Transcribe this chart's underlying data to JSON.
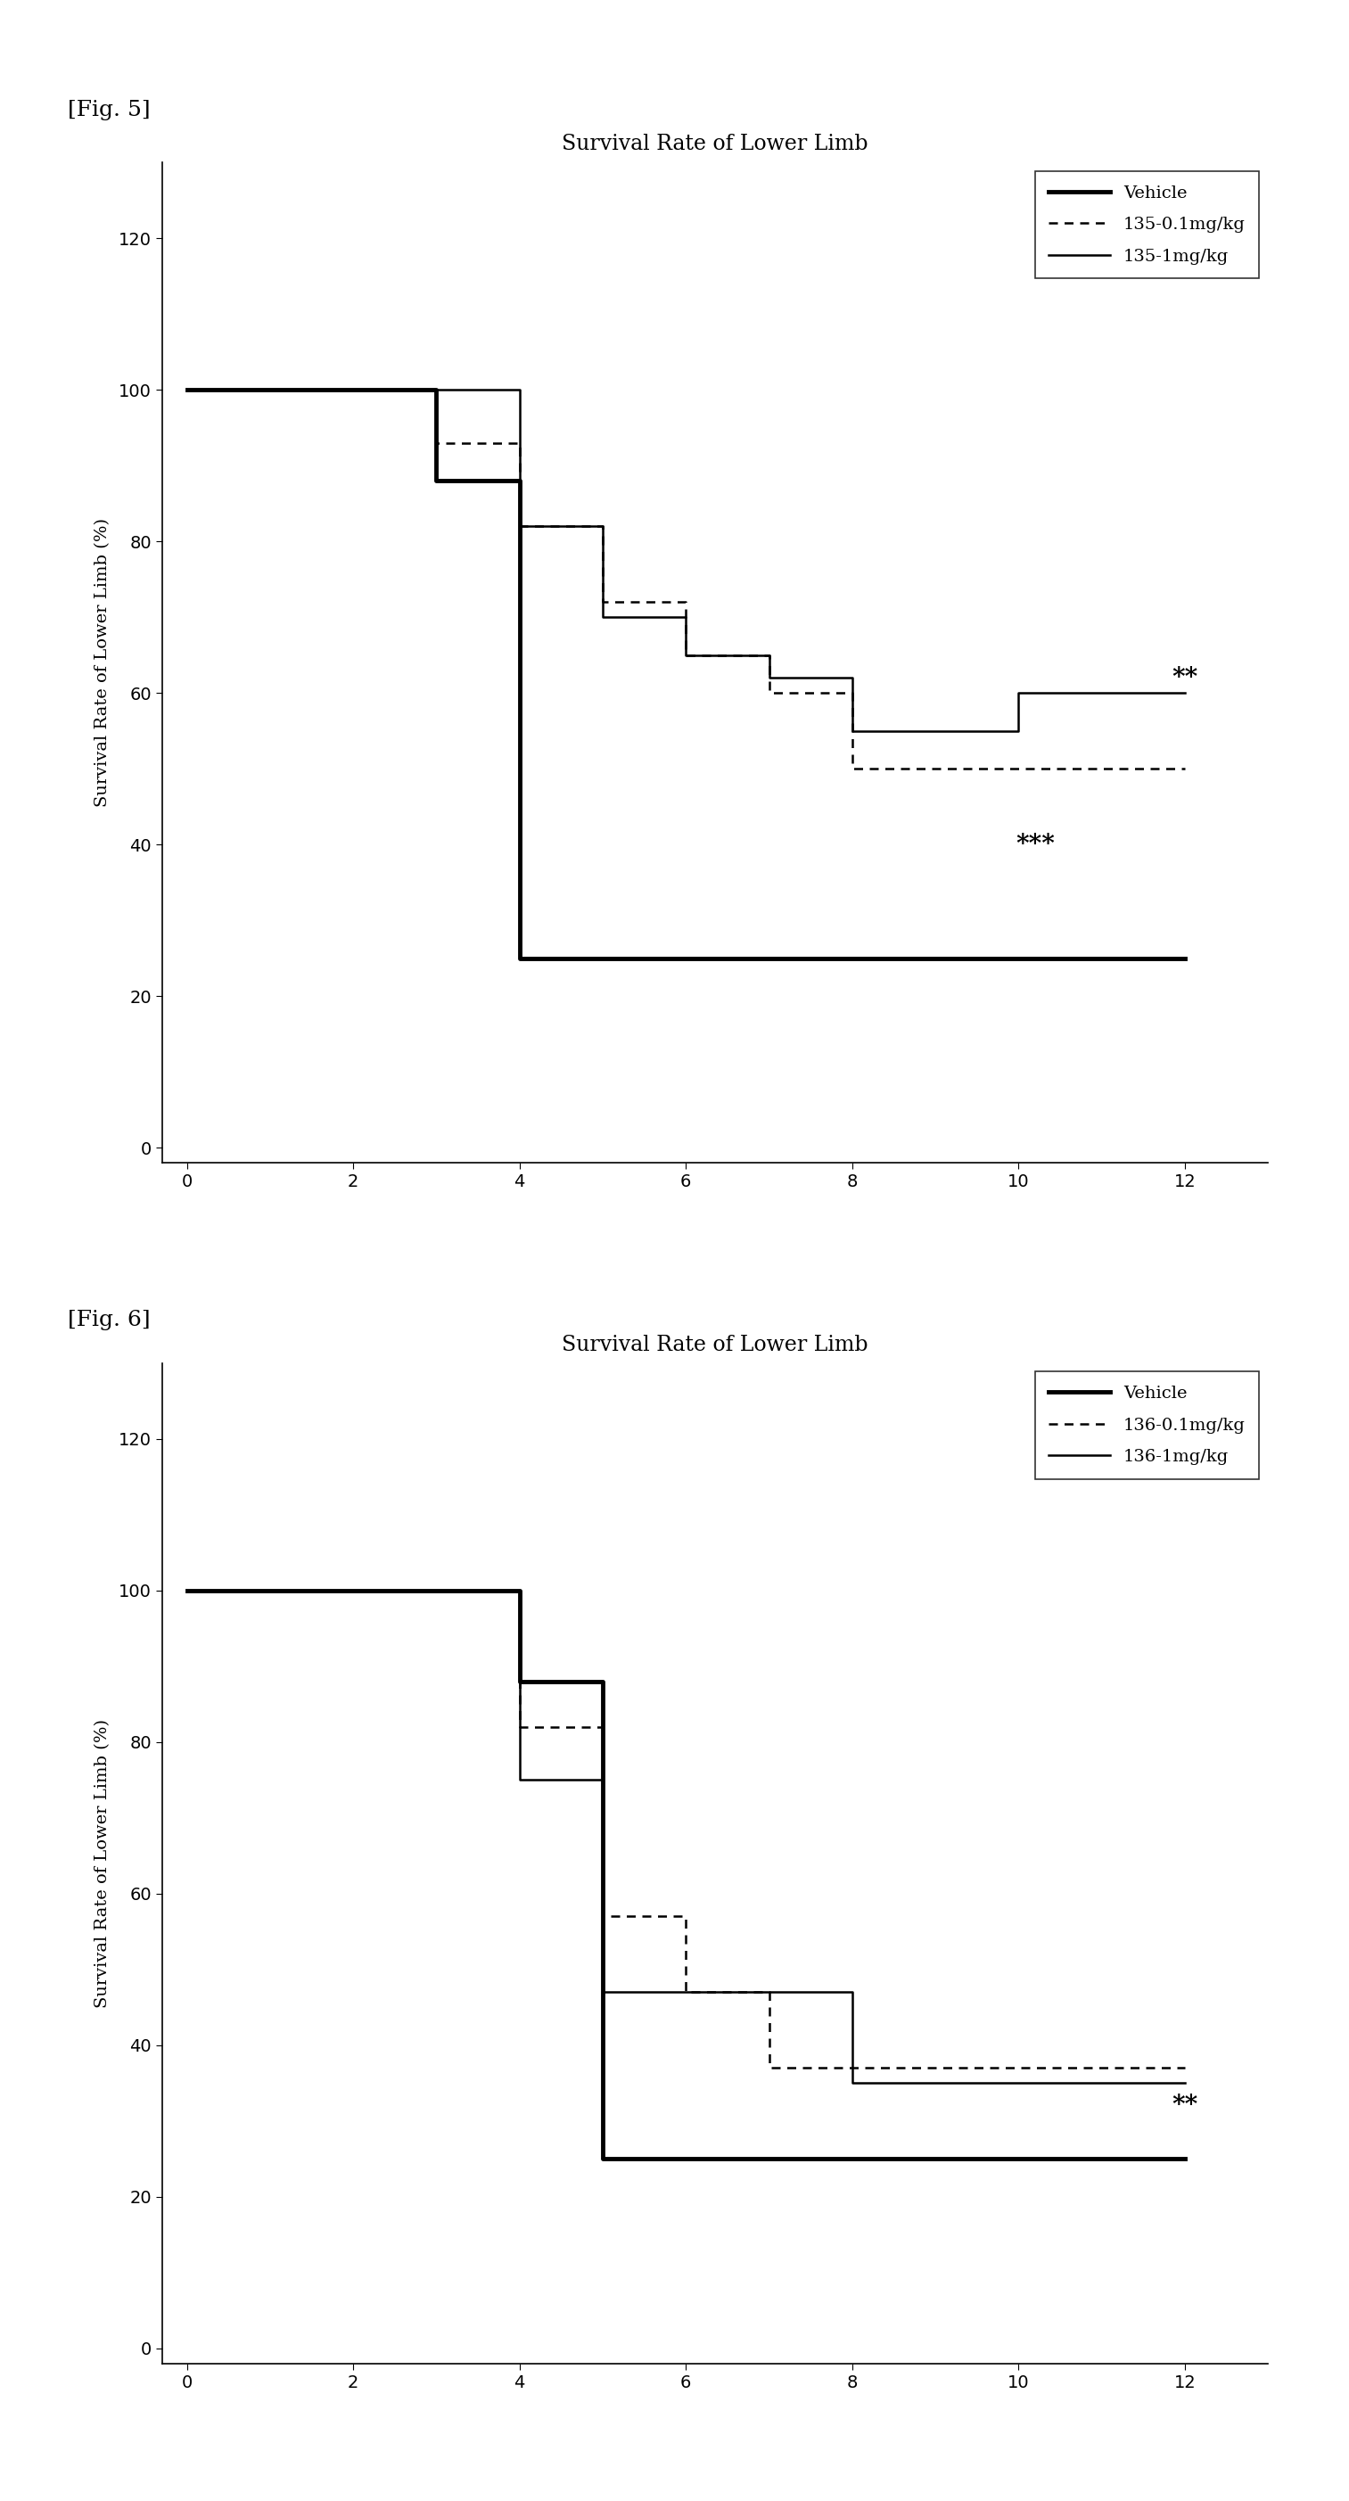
{
  "fig5": {
    "title": "Survival Rate of Lower Limb",
    "ylabel": "Survival Rate of Lower Limb (%)",
    "xlim": [
      -0.3,
      13
    ],
    "ylim": [
      -2,
      130
    ],
    "yticks": [
      0,
      20,
      40,
      60,
      80,
      100,
      120
    ],
    "xticks": [
      0,
      2,
      4,
      6,
      8,
      10,
      12
    ],
    "vehicle_x": [
      0,
      3,
      3,
      4,
      4,
      12
    ],
    "vehicle_y": [
      100,
      100,
      88,
      88,
      25,
      25
    ],
    "drug01_x": [
      0,
      3,
      3,
      4,
      4,
      5,
      5,
      6,
      6,
      7,
      7,
      8,
      8,
      12
    ],
    "drug01_y": [
      100,
      100,
      93,
      93,
      82,
      82,
      72,
      72,
      65,
      65,
      60,
      60,
      50,
      50
    ],
    "drug1_x": [
      0,
      4,
      4,
      5,
      5,
      6,
      6,
      7,
      7,
      8,
      8,
      10,
      10,
      12
    ],
    "drug1_y": [
      100,
      100,
      82,
      82,
      70,
      70,
      65,
      65,
      62,
      62,
      55,
      55,
      60,
      60
    ],
    "vehicle_label": "Vehicle",
    "drug01_label": "135-0.1mg/kg",
    "drug1_label": "135-1mg/kg",
    "ann1_x": 10.2,
    "ann1_y": 40,
    "ann1_text": "***",
    "ann2_x": 12.0,
    "ann2_y": 62,
    "ann2_text": "**",
    "label": "[Fig. 5]"
  },
  "fig6": {
    "title": "Survival Rate of Lower Limb",
    "ylabel": "Survival Rate of Lower Limb (%)",
    "xlim": [
      -0.3,
      13
    ],
    "ylim": [
      -2,
      130
    ],
    "yticks": [
      0,
      20,
      40,
      60,
      80,
      100,
      120
    ],
    "xticks": [
      0,
      2,
      4,
      6,
      8,
      10,
      12
    ],
    "vehicle_x": [
      0,
      4,
      4,
      5,
      5,
      6,
      6,
      12
    ],
    "vehicle_y": [
      100,
      100,
      88,
      88,
      25,
      25,
      25,
      25
    ],
    "drug01_x": [
      0,
      4,
      4,
      5,
      5,
      6,
      6,
      7,
      7,
      8,
      8,
      10,
      10,
      12
    ],
    "drug01_y": [
      100,
      100,
      82,
      82,
      57,
      57,
      47,
      47,
      37,
      37,
      37,
      37,
      37,
      37
    ],
    "drug1_x": [
      0,
      4,
      4,
      5,
      5,
      6,
      6,
      8,
      8,
      12
    ],
    "drug1_y": [
      100,
      100,
      75,
      75,
      47,
      47,
      47,
      47,
      35,
      35
    ],
    "vehicle_label": "Vehicle",
    "drug01_label": "136-0.1mg/kg",
    "drug1_label": "136-1mg/kg",
    "ann1_x": 12.0,
    "ann1_y": 32,
    "ann1_text": "**",
    "label": "[Fig. 6]"
  },
  "vehicle_lw": 3.5,
  "drug_lw": 1.8,
  "title_fontsize": 17,
  "label_fontsize": 14,
  "tick_fontsize": 14,
  "ann_fontsize": 20,
  "legend_fontsize": 14,
  "fig_label_fontsize": 18,
  "bg": "white"
}
